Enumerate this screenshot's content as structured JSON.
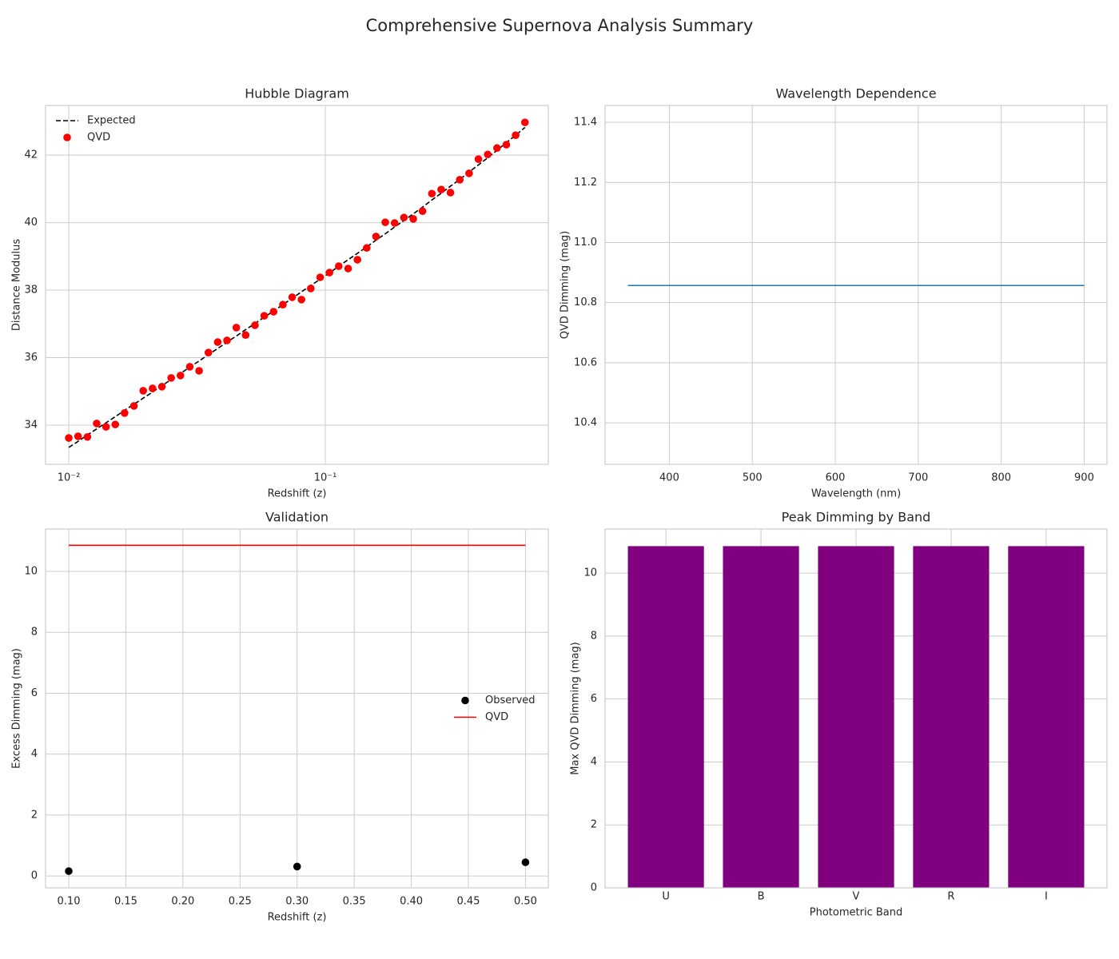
{
  "title": "Comprehensive Supernova Analysis Summary",
  "chart_data": [
    {
      "type": "combo",
      "title": "Hubble Diagram",
      "x_label": "Redshift (z)",
      "y_label": "Distance Modulus",
      "xscale": "log",
      "xlim": [
        0.00812,
        0.74
      ],
      "ylim": [
        32.84,
        43.47
      ],
      "xticks": [
        {
          "value": 0.01,
          "label": "10⁻²"
        },
        {
          "value": 0.1,
          "label": "10⁻¹"
        }
      ],
      "yticks": [
        34,
        36,
        38,
        40,
        42
      ],
      "grid": true,
      "legend": "upper left",
      "x": [
        0.01,
        0.01087,
        0.01182,
        0.01285,
        0.01397,
        0.01518,
        0.0165,
        0.01795,
        0.01951,
        0.02121,
        0.02306,
        0.02507,
        0.02725,
        0.02963,
        0.03221,
        0.03502,
        0.03807,
        0.04138,
        0.04499,
        0.04891,
        0.05317,
        0.0578,
        0.06284,
        0.06832,
        0.07427,
        0.08074,
        0.08778,
        0.09545,
        0.1038,
        0.1128,
        0.1227,
        0.1334,
        0.145,
        0.1576,
        0.1713,
        0.1863,
        0.2025,
        0.2202,
        0.2393,
        0.2602,
        0.2829,
        0.3075,
        0.3343,
        0.3635,
        0.3952,
        0.4296,
        0.467,
        0.5077,
        0.552,
        0.6
      ],
      "series": [
        {
          "name": "Expected",
          "type": "line",
          "linestyle": "dashed",
          "color": "#000000",
          "values": [
            33.34,
            33.52,
            33.71,
            33.89,
            34.07,
            34.25,
            34.44,
            34.62,
            34.8,
            34.98,
            35.17,
            35.35,
            35.53,
            35.72,
            35.9,
            36.09,
            36.27,
            36.46,
            36.64,
            36.83,
            37.01,
            37.2,
            37.38,
            37.57,
            37.76,
            37.95,
            38.14,
            38.32,
            38.51,
            38.71,
            38.9,
            39.09,
            39.28,
            39.48,
            39.67,
            39.87,
            40.06,
            40.26,
            40.46,
            40.67,
            40.87,
            41.08,
            41.28,
            41.5,
            41.71,
            41.92,
            42.14,
            42.37,
            42.59,
            42.82
          ]
        },
        {
          "name": "QVD",
          "type": "scatter",
          "color": "#ff0000",
          "values": [
            33.62,
            33.67,
            33.65,
            34.05,
            33.95,
            34.02,
            34.36,
            34.57,
            35.02,
            35.09,
            35.14,
            35.4,
            35.47,
            35.73,
            35.61,
            36.15,
            36.46,
            36.51,
            36.89,
            36.67,
            36.96,
            37.24,
            37.36,
            37.57,
            37.79,
            37.72,
            38.05,
            38.38,
            38.52,
            38.71,
            38.64,
            38.9,
            39.25,
            39.59,
            40.01,
            39.99,
            40.15,
            40.11,
            40.34,
            40.86,
            40.98,
            40.89,
            41.27,
            41.46,
            41.88,
            42.02,
            42.21,
            42.31,
            42.59,
            42.97
          ]
        }
      ]
    },
    {
      "type": "line",
      "title": "Wavelength Dependence",
      "x_label": "Wavelength (nm)",
      "y_label": "QVD Dimming (mag)",
      "xlim": [
        322.5,
        927.5
      ],
      "ylim": [
        10.262,
        11.456
      ],
      "xticks": [
        400,
        500,
        600,
        700,
        800,
        900
      ],
      "yticks": [
        {
          "value": 10.4,
          "label": "10.4"
        },
        {
          "value": 10.6,
          "label": "10.6"
        },
        {
          "value": 10.8,
          "label": "10.8"
        },
        {
          "value": 11.0,
          "label": "11.0"
        },
        {
          "value": 11.2,
          "label": "11.2"
        },
        {
          "value": 11.4,
          "label": "11.4"
        }
      ],
      "grid": true,
      "x": [
        350,
        900
      ],
      "series": [
        {
          "type": "line",
          "color": "#1f77b4",
          "values": [
            10.857,
            10.857
          ]
        }
      ]
    },
    {
      "type": "combo",
      "title": "Validation",
      "x_label": "Redshift (z)",
      "y_label": "Excess Dimming (mag)",
      "xlim": [
        0.0797,
        0.52
      ],
      "ylim": [
        -0.39,
        11.39
      ],
      "xticks": [
        {
          "value": 0.1,
          "label": "0.10"
        },
        {
          "value": 0.15,
          "label": "0.15"
        },
        {
          "value": 0.2,
          "label": "0.20"
        },
        {
          "value": 0.25,
          "label": "0.25"
        },
        {
          "value": 0.3,
          "label": "0.30"
        },
        {
          "value": 0.35,
          "label": "0.35"
        },
        {
          "value": 0.4,
          "label": "0.40"
        },
        {
          "value": 0.45,
          "label": "0.45"
        },
        {
          "value": 0.5,
          "label": "0.50"
        }
      ],
      "yticks": [
        0,
        2,
        4,
        6,
        8,
        10
      ],
      "grid": true,
      "legend": "center right",
      "series": [
        {
          "name": "Observed",
          "type": "scatter",
          "color": "#000000",
          "x": [
            0.1,
            0.3,
            0.5
          ],
          "values": [
            0.16,
            0.31,
            0.45
          ]
        },
        {
          "name": "QVD",
          "type": "line",
          "color": "#ff0000",
          "x": [
            0.1,
            0.5
          ],
          "values": [
            10.857,
            10.857
          ]
        }
      ]
    },
    {
      "type": "bar",
      "title": "Peak Dimming by Band",
      "x_label": "Photometric Band",
      "y_label": "Max QVD Dimming (mag)",
      "ylim": [
        0,
        11.4
      ],
      "yticks": [
        0,
        2,
        4,
        6,
        8,
        10
      ],
      "grid": true,
      "color": "#800080",
      "categories": [
        "U",
        "B",
        "V",
        "R",
        "I"
      ],
      "values": [
        10.857,
        10.857,
        10.857,
        10.857,
        10.857
      ]
    }
  ]
}
